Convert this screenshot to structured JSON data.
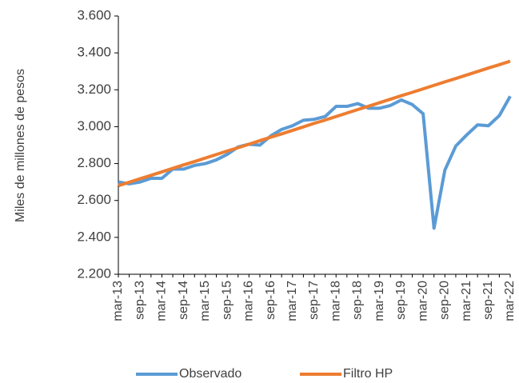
{
  "chart_data": {
    "type": "line",
    "y_axis_label": "Miles de millones de pesos",
    "categories": [
      "mar-13",
      null,
      "sep-13",
      null,
      "mar-14",
      null,
      "sep-14",
      null,
      "mar-15",
      null,
      "sep-15",
      null,
      "mar-16",
      null,
      "sep-16",
      null,
      "mar-17",
      null,
      "sep-17",
      null,
      "mar-18",
      null,
      "sep-18",
      null,
      "mar-19",
      null,
      "sep-19",
      null,
      "mar-20",
      null,
      "sep-20",
      null,
      "mar-21",
      null,
      "sep-21",
      null,
      "mar-22"
    ],
    "series": [
      {
        "name": "Observado",
        "color": "#5b9bd5",
        "values": [
          2700,
          2690,
          2700,
          2720,
          2720,
          2770,
          2770,
          2790,
          2800,
          2820,
          2850,
          2890,
          2905,
          2900,
          2950,
          2985,
          3005,
          3035,
          3040,
          3055,
          3110,
          3110,
          3125,
          3100,
          3100,
          3115,
          3145,
          3120,
          3070,
          2450,
          2765,
          2895,
          2955,
          3010,
          3005,
          3060,
          3165
        ]
      },
      {
        "name": "Filtro HP",
        "color": "#ed7d31",
        "values": [
          2680,
          2699,
          2718,
          2736,
          2755,
          2774,
          2793,
          2811,
          2830,
          2849,
          2868,
          2886,
          2905,
          2924,
          2943,
          2961,
          2980,
          2999,
          3018,
          3036,
          3055,
          3074,
          3093,
          3111,
          3130,
          3149,
          3168,
          3186,
          3205,
          3224,
          3243,
          3261,
          3280,
          3299,
          3318,
          3336,
          3355
        ]
      }
    ],
    "ylim": [
      2200,
      3600
    ],
    "yticks": [
      {
        "value": 2200,
        "label": "2.200"
      },
      {
        "value": 2400,
        "label": "2.400"
      },
      {
        "value": 2600,
        "label": "2.600"
      },
      {
        "value": 2800,
        "label": "2.800"
      },
      {
        "value": 3000,
        "label": "3.000"
      },
      {
        "value": 3200,
        "label": "3.200"
      },
      {
        "value": 3400,
        "label": "3.400"
      },
      {
        "value": 3600,
        "label": "3.600"
      }
    ],
    "legend": "bottom"
  }
}
